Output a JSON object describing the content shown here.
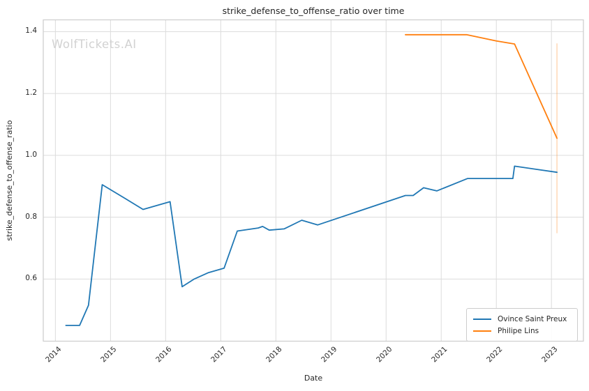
{
  "chart_data": {
    "type": "line",
    "title": "strike_defense_to_offense_ratio over time",
    "xlabel": "Date",
    "ylabel": "strike_defense_to_offense_ratio",
    "watermark": "WolfTickets.AI",
    "grid": true,
    "legend_position": "lower right",
    "xlim": [
      2013.78,
      2023.58
    ],
    "ylim": [
      0.399,
      1.438
    ],
    "xticks": [
      2014,
      2015,
      2016,
      2017,
      2018,
      2019,
      2020,
      2021,
      2022,
      2023
    ],
    "yticks": [
      0.6,
      0.8,
      1.0,
      1.2,
      1.4
    ],
    "series": [
      {
        "name": "Ovince Saint Preux",
        "color": "#1f77b4",
        "x": [
          2014.19,
          2014.44,
          2014.6,
          2014.85,
          2015.27,
          2015.59,
          2016.08,
          2016.3,
          2016.52,
          2016.77,
          2017.06,
          2017.3,
          2017.68,
          2017.76,
          2017.88,
          2018.15,
          2018.47,
          2018.76,
          2020.35,
          2020.49,
          2020.68,
          2020.92,
          2021.48,
          2022.3,
          2022.33,
          2023.1
        ],
        "y": [
          0.45,
          0.45,
          0.515,
          0.905,
          0.86,
          0.825,
          0.85,
          0.575,
          0.6,
          0.62,
          0.635,
          0.755,
          0.765,
          0.77,
          0.758,
          0.762,
          0.79,
          0.775,
          0.87,
          0.87,
          0.895,
          0.885,
          0.925,
          0.925,
          0.965,
          0.945
        ]
      },
      {
        "name": "Philipe Lins",
        "color": "#ff7f0e",
        "x": [
          2020.35,
          2021.46,
          2022.0,
          2022.33,
          2023.1
        ],
        "y": [
          1.39,
          1.39,
          1.37,
          1.36,
          1.055
        ]
      }
    ],
    "error_bar": {
      "series": "Philipe Lins",
      "x": 2023.1,
      "y_low": 0.748,
      "y_high": 1.362,
      "opacity": 0.3
    }
  },
  "colors": {
    "background": "#ffffff",
    "grid": "#dcdcdc",
    "spine": "#cccccc",
    "text": "#262626",
    "watermark": "#d2d2d2",
    "series_blue": "#1f77b4",
    "series_orange": "#ff7f0e"
  }
}
